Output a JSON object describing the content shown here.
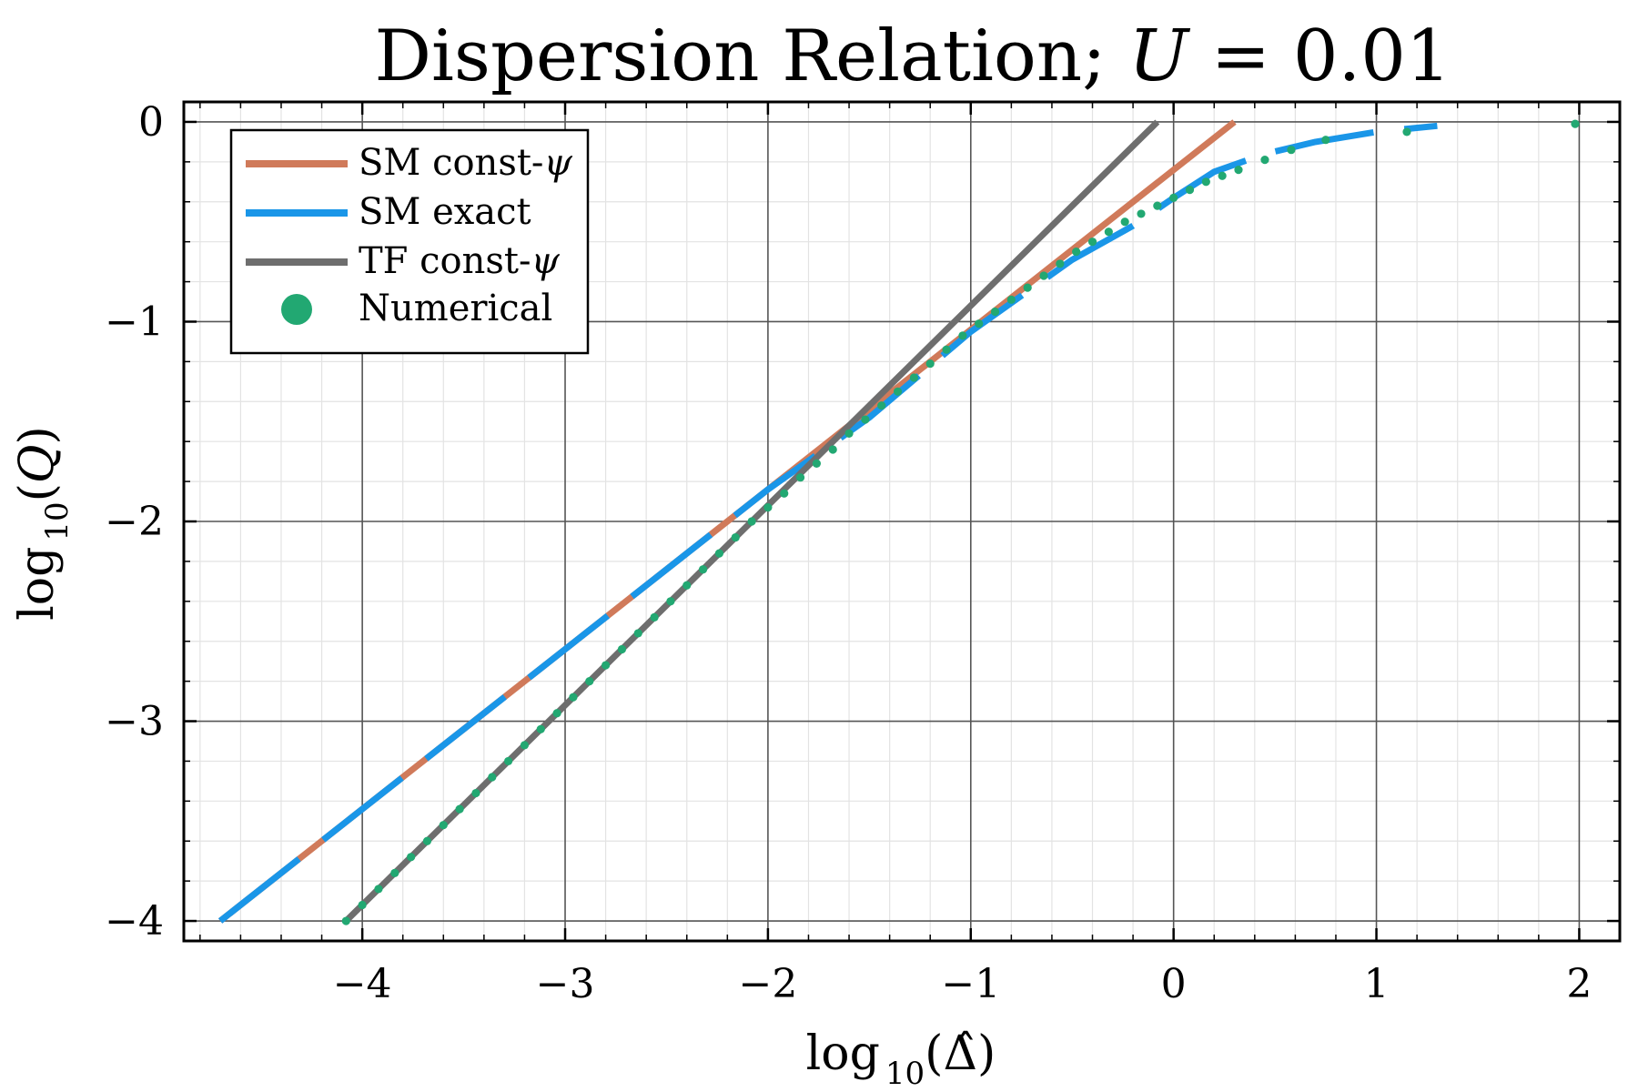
{
  "chart_data": {
    "type": "line",
    "title_prefix": "Dispersion Relation; ",
    "title_var": "U",
    "title_eq": " = 0.01",
    "xlabel": {
      "fn": "log",
      "sub": "10",
      "arg": "Δ̂"
    },
    "ylabel": {
      "fn": "log",
      "sub": "10",
      "arg": "Q"
    },
    "xlim": [
      -4.88,
      2.2
    ],
    "ylim": [
      -4.1,
      0.1
    ],
    "xticks": [
      -4,
      -3,
      -2,
      -1,
      0,
      1,
      2
    ],
    "xtick_labels": [
      "−4",
      "−3",
      "−2",
      "−1",
      "0",
      "1",
      "2"
    ],
    "yticks": [
      0,
      -1,
      -2,
      -3,
      -4
    ],
    "ytick_labels": [
      "0",
      "−1",
      "−2",
      "−3",
      "−4"
    ],
    "grid": true,
    "minor_grid": true,
    "legend_position": "top-left",
    "colors": {
      "sm_const": "#d07a5a",
      "sm_exact": "#1a96e8",
      "tf_const": "#6e6e6e",
      "numerical": "#22a872"
    },
    "series": [
      {
        "name": "SM const-",
        "name_var": "ψ",
        "style": "line",
        "color_key": "sm_const",
        "x": [
          -4.7,
          0.3
        ],
        "y": [
          -4.0,
          0.0
        ]
      },
      {
        "name": "SM exact",
        "style": "dashed",
        "color_key": "sm_exact",
        "x": [
          -4.7,
          -3.0,
          -2.0,
          -1.5,
          -1.0,
          -0.5,
          -0.2,
          0.0,
          0.2,
          0.45,
          0.7,
          1.0,
          1.3
        ],
        "y": [
          -4.0,
          -2.64,
          -1.84,
          -1.48,
          -1.05,
          -0.69,
          -0.52,
          -0.38,
          -0.25,
          -0.16,
          -0.1,
          -0.05,
          -0.02
        ]
      },
      {
        "name": "TF const-",
        "name_var": "ψ",
        "style": "line",
        "color_key": "tf_const",
        "x": [
          -4.08,
          -0.08
        ],
        "y": [
          -4.0,
          0.0
        ]
      },
      {
        "name": "Numerical",
        "style": "points",
        "color_key": "numerical",
        "x": [
          -4.08,
          -4.0,
          -3.92,
          -3.84,
          -3.76,
          -3.68,
          -3.6,
          -3.52,
          -3.44,
          -3.36,
          -3.28,
          -3.2,
          -3.12,
          -3.04,
          -2.96,
          -2.88,
          -2.8,
          -2.72,
          -2.64,
          -2.56,
          -2.48,
          -2.4,
          -2.32,
          -2.24,
          -2.16,
          -2.08,
          -2.0,
          -1.92,
          -1.84,
          -1.76,
          -1.68,
          -1.6,
          -1.52,
          -1.44,
          -1.36,
          -1.28,
          -1.2,
          -1.12,
          -1.04,
          -0.96,
          -0.88,
          -0.8,
          -0.72,
          -0.64,
          -0.56,
          -0.48,
          -0.4,
          -0.32,
          -0.24,
          -0.16,
          -0.08,
          0.0,
          0.08,
          0.16,
          0.24,
          0.32,
          0.45,
          0.58,
          0.75,
          1.15,
          1.98
        ],
        "y": [
          -4.0,
          -3.92,
          -3.84,
          -3.76,
          -3.68,
          -3.6,
          -3.52,
          -3.44,
          -3.36,
          -3.28,
          -3.2,
          -3.12,
          -3.04,
          -2.96,
          -2.88,
          -2.8,
          -2.72,
          -2.64,
          -2.56,
          -2.48,
          -2.4,
          -2.32,
          -2.24,
          -2.16,
          -2.08,
          -2.0,
          -1.93,
          -1.86,
          -1.78,
          -1.71,
          -1.64,
          -1.56,
          -1.49,
          -1.42,
          -1.35,
          -1.28,
          -1.21,
          -1.14,
          -1.07,
          -1.01,
          -0.95,
          -0.89,
          -0.83,
          -0.77,
          -0.71,
          -0.65,
          -0.6,
          -0.55,
          -0.5,
          -0.46,
          -0.42,
          -0.38,
          -0.34,
          -0.3,
          -0.27,
          -0.24,
          -0.19,
          -0.14,
          -0.09,
          -0.05,
          -0.01
        ]
      }
    ]
  }
}
